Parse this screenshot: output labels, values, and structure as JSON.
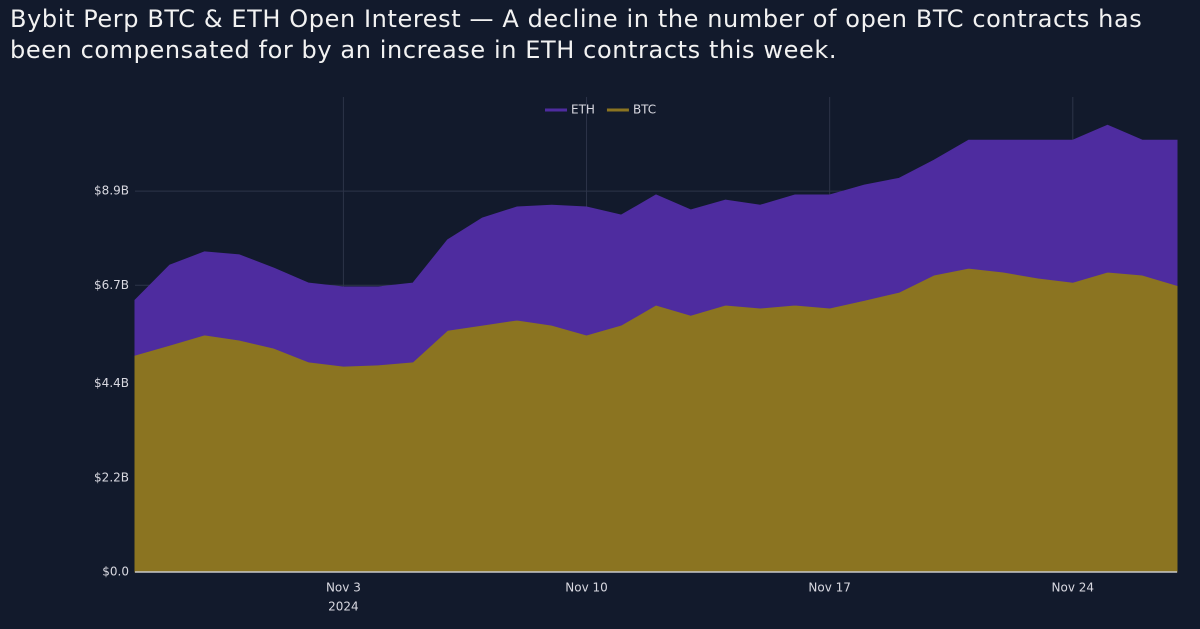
{
  "chart_data": {
    "type": "stacked-area",
    "title": "Bybit Perp BTC & ETH Open Interest — A decline in the number of open BTC contracts has been compensated for by an increase in ETH contracts this week.",
    "x": [
      "2024-10-28",
      "2024-10-29",
      "2024-10-30",
      "2024-10-31",
      "2024-11-01",
      "2024-11-02",
      "2024-11-03",
      "2024-11-04",
      "2024-11-05",
      "2024-11-06",
      "2024-11-07",
      "2024-11-08",
      "2024-11-09",
      "2024-11-10",
      "2024-11-11",
      "2024-11-12",
      "2024-11-13",
      "2024-11-14",
      "2024-11-15",
      "2024-11-16",
      "2024-11-17",
      "2024-11-18",
      "2024-11-19",
      "2024-11-20",
      "2024-11-21",
      "2024-11-22",
      "2024-11-23",
      "2024-11-24",
      "2024-11-25",
      "2024-11-26",
      "2024-11-27"
    ],
    "series": [
      {
        "name": "ETH",
        "color": "#4e2c9f",
        "values": [
          1.28,
          1.87,
          1.94,
          1.99,
          1.87,
          1.84,
          1.85,
          1.82,
          1.84,
          2.11,
          2.5,
          2.64,
          2.8,
          2.99,
          2.57,
          2.57,
          2.46,
          2.45,
          2.4,
          2.57,
          2.64,
          2.69,
          2.66,
          2.68,
          2.99,
          3.08,
          3.22,
          3.32,
          3.43,
          3.15,
          3.39
        ]
      },
      {
        "name": "BTC",
        "color": "#8b7421",
        "values": [
          5.07,
          5.3,
          5.54,
          5.42,
          5.23,
          4.91,
          4.81,
          4.84,
          4.91,
          5.65,
          5.77,
          5.89,
          5.77,
          5.54,
          5.77,
          6.24,
          6.0,
          6.24,
          6.17,
          6.24,
          6.17,
          6.35,
          6.54,
          6.94,
          7.1,
          7.01,
          6.87,
          6.77,
          7.01,
          6.94,
          6.7
        ]
      }
    ],
    "xlim": [
      "2024-10-28",
      "2024-11-27"
    ],
    "xticks": [
      {
        "value": "2024-11-03",
        "label": "Nov 3"
      },
      {
        "value": "2024-11-10",
        "label": "Nov 10"
      },
      {
        "value": "2024-11-17",
        "label": "Nov 17"
      },
      {
        "value": "2024-11-24",
        "label": "Nov 24"
      }
    ],
    "xtick_year": "2024",
    "ylim": [
      0,
      11.1
    ],
    "yticks": [
      {
        "value": 0,
        "label": "$0.0"
      },
      {
        "value": 2.2,
        "label": "$2.2B"
      },
      {
        "value": 4.4,
        "label": "$4.4B"
      },
      {
        "value": 6.7,
        "label": "$6.7B"
      },
      {
        "value": 8.9,
        "label": "$8.9B"
      }
    ],
    "grid": true,
    "legend": "top"
  }
}
